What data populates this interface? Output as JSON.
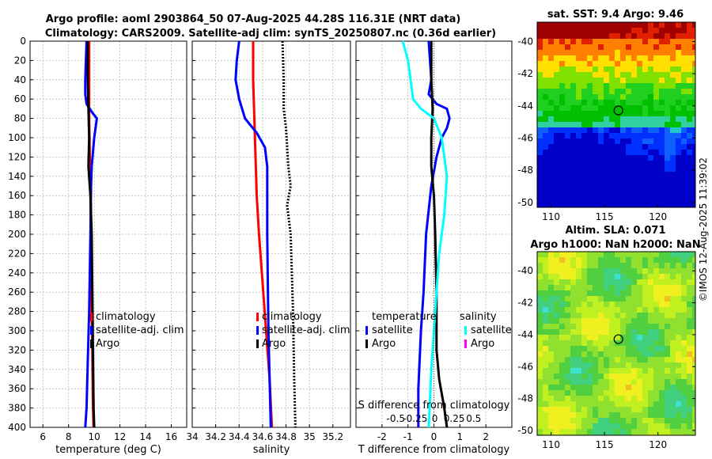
{
  "header": {
    "line1": "Argo profile: aoml 2903864_50 07-Aug-2025 44.28S 116.31E (NRT data)",
    "line2": "Climatology: CARS2009. Satellite-adj clim: synTS_20250807.nc (0.36d earlier)"
  },
  "watermark": "©IMOS 12-Aug-2025 11:39:02",
  "colors": {
    "climatology": "#ff0000",
    "satellite": "#0000ff",
    "argo": "#000000",
    "sat_sal": "#00ffff",
    "argo_sal": "#ff00ff"
  },
  "chart_data": [
    {
      "type": "line",
      "name": "temperature",
      "xlabel": "temperature (deg C)",
      "xlim": [
        5,
        17.2
      ],
      "xticks": [
        6,
        8,
        10,
        12,
        14,
        16
      ],
      "xtick_labels": [
        "6",
        "8",
        "10",
        "12",
        "14",
        "16"
      ],
      "ylim": [
        0,
        400
      ],
      "yticks": [
        0,
        20,
        40,
        60,
        80,
        100,
        120,
        140,
        160,
        180,
        200,
        220,
        240,
        260,
        280,
        300,
        320,
        340,
        360,
        380,
        400
      ],
      "ytick_labels": [
        "0",
        "20",
        "40",
        "60",
        "80",
        "100",
        "120",
        "140",
        "160",
        "180",
        "200",
        "220",
        "240",
        "260",
        "280",
        "300",
        "320",
        "340",
        "360",
        "380",
        "400"
      ],
      "legend": [
        "climatology",
        "satellite-adj. clim",
        "Argo"
      ],
      "legend_position": "bottom-right",
      "series": [
        {
          "name": "climatology",
          "color": "#ff0000",
          "dash": "",
          "points": [
            [
              9.6,
              0
            ],
            [
              9.6,
              40
            ],
            [
              9.6,
              80
            ],
            [
              9.65,
              120
            ],
            [
              9.7,
              150
            ],
            [
              9.75,
              200
            ],
            [
              9.8,
              280
            ],
            [
              9.85,
              320
            ],
            [
              9.9,
              380
            ],
            [
              9.95,
              400
            ]
          ]
        },
        {
          "name": "satellite-adj. clim",
          "color": "#0000ff",
          "dash": "",
          "points": [
            [
              9.4,
              0
            ],
            [
              9.35,
              20
            ],
            [
              9.3,
              40
            ],
            [
              9.3,
              55
            ],
            [
              9.4,
              65
            ],
            [
              9.9,
              75
            ],
            [
              10.2,
              80
            ],
            [
              10.1,
              90
            ],
            [
              10.0,
              100
            ],
            [
              9.9,
              115
            ],
            [
              9.8,
              130
            ],
            [
              9.75,
              150
            ],
            [
              9.7,
              200
            ],
            [
              9.6,
              280
            ],
            [
              9.5,
              330
            ],
            [
              9.4,
              380
            ],
            [
              9.3,
              400
            ]
          ]
        },
        {
          "name": "Argo",
          "color": "#000000",
          "dash": "",
          "points": [
            [
              9.5,
              0
            ],
            [
              9.5,
              40
            ],
            [
              9.55,
              70
            ],
            [
              9.6,
              100
            ],
            [
              9.55,
              130
            ],
            [
              9.7,
              160
            ],
            [
              9.8,
              200
            ],
            [
              9.85,
              260
            ],
            [
              9.9,
              320
            ],
            [
              9.95,
              380
            ],
            [
              10.0,
              400
            ]
          ]
        }
      ]
    },
    {
      "type": "line",
      "name": "salinity",
      "xlabel": "salinity",
      "xlim": [
        34,
        35.35
      ],
      "xticks": [
        34,
        34.2,
        34.4,
        34.6,
        34.8,
        35,
        35.2
      ],
      "xtick_labels": [
        "34",
        "34.2",
        "34.4",
        "34.6",
        "34.8",
        "35",
        "35.2"
      ],
      "ylim": [
        0,
        400
      ],
      "legend": [
        "climatology",
        "satellite-adj. clim",
        "Argo"
      ],
      "legend_position": "bottom-right",
      "series": [
        {
          "name": "climatology",
          "color": "#ff0000",
          "dash": "",
          "points": [
            [
              34.52,
              0
            ],
            [
              34.52,
              40
            ],
            [
              34.53,
              80
            ],
            [
              34.54,
              120
            ],
            [
              34.55,
              160
            ],
            [
              34.57,
              200
            ],
            [
              34.6,
              250
            ],
            [
              34.63,
              300
            ],
            [
              34.66,
              350
            ],
            [
              34.68,
              400
            ]
          ]
        },
        {
          "name": "satellite-adj. clim",
          "color": "#0000ff",
          "dash": "",
          "points": [
            [
              34.4,
              0
            ],
            [
              34.38,
              20
            ],
            [
              34.37,
              40
            ],
            [
              34.4,
              60
            ],
            [
              34.45,
              80
            ],
            [
              34.55,
              95
            ],
            [
              34.62,
              110
            ],
            [
              34.64,
              130
            ],
            [
              34.64,
              200
            ],
            [
              34.65,
              300
            ],
            [
              34.67,
              400
            ]
          ]
        },
        {
          "name": "Argo",
          "color": "#000000",
          "dash": "2,2",
          "points": [
            [
              34.77,
              0
            ],
            [
              34.78,
              40
            ],
            [
              34.78,
              70
            ],
            [
              34.8,
              90
            ],
            [
              34.82,
              130
            ],
            [
              34.84,
              150
            ],
            [
              34.81,
              170
            ],
            [
              34.84,
              200
            ],
            [
              34.86,
              280
            ],
            [
              34.87,
              350
            ],
            [
              34.88,
              400
            ]
          ]
        }
      ]
    },
    {
      "type": "line",
      "name": "differences",
      "xlabel": "T difference from climatology",
      "xlabel2": "S difference from climatology",
      "xlim": [
        -3,
        3
      ],
      "xticks": [
        -2,
        -1,
        0,
        1,
        2
      ],
      "xtick_labels": [
        "-2",
        "-1",
        "0",
        "1",
        "2"
      ],
      "xticks2_labels": [
        "-0.5",
        "-0.25",
        "0",
        "0.25",
        "0.5"
      ],
      "ylim": [
        0,
        400
      ],
      "legend_temp_header": "temperature",
      "legend_sal_header": "salinity",
      "legend_temp": [
        "satellite",
        "Argo"
      ],
      "legend_sal": [
        "satellite",
        "Argo"
      ],
      "series": [
        {
          "name": "T satellite",
          "color": "#0000ff",
          "dash": "",
          "points": [
            [
              -0.2,
              0
            ],
            [
              -0.1,
              40
            ],
            [
              -0.2,
              55
            ],
            [
              0.1,
              65
            ],
            [
              0.5,
              70
            ],
            [
              0.6,
              80
            ],
            [
              0.5,
              90
            ],
            [
              0.3,
              100
            ],
            [
              0.1,
              120
            ],
            [
              -0.1,
              150
            ],
            [
              -0.3,
              200
            ],
            [
              -0.4,
              260
            ],
            [
              -0.5,
              300
            ],
            [
              -0.6,
              360
            ],
            [
              -0.6,
              400
            ]
          ]
        },
        {
          "name": "T Argo",
          "color": "#000000",
          "dash": "",
          "points": [
            [
              -0.1,
              0
            ],
            [
              -0.1,
              40
            ],
            [
              -0.05,
              70
            ],
            [
              -0.1,
              100
            ],
            [
              -0.1,
              130
            ],
            [
              0,
              160
            ],
            [
              0.05,
              200
            ],
            [
              0.1,
              260
            ],
            [
              0.1,
              320
            ],
            [
              0.2,
              350
            ],
            [
              0.4,
              380
            ],
            [
              0.5,
              400
            ]
          ]
        },
        {
          "name": "S satellite",
          "color": "#00ffff",
          "dash": "",
          "points": [
            [
              -1.2,
              0
            ],
            [
              -1.0,
              20
            ],
            [
              -0.9,
              40
            ],
            [
              -0.8,
              60
            ],
            [
              -0.5,
              70
            ],
            [
              0,
              80
            ],
            [
              0.3,
              100
            ],
            [
              0.5,
              140
            ],
            [
              0.4,
              180
            ],
            [
              0.2,
              220
            ],
            [
              0.1,
              260
            ],
            [
              0,
              300
            ],
            [
              -0.1,
              340
            ],
            [
              -0.2,
              400
            ]
          ]
        },
        {
          "name": "S Argo",
          "color": "#ff00ff",
          "dash": "",
          "points": []
        }
      ]
    },
    {
      "type": "heatmap",
      "name": "sst-map",
      "title": "sat. SST: 9.4 Argo: 9.46",
      "xticks": [
        110,
        115,
        120
      ],
      "xtick_labels": [
        "110",
        "115",
        "120"
      ],
      "yticks": [
        -40,
        -42,
        -44,
        -46,
        -48,
        -50
      ],
      "ytick_labels": [
        "-40",
        "-42",
        "-44",
        "-46",
        "-48",
        "-50"
      ],
      "xlim": [
        108.7,
        123.5
      ],
      "ylim": [
        -50.3,
        -38.8
      ],
      "marker": [
        116.3,
        -44.28
      ]
    },
    {
      "type": "heatmap",
      "name": "sla-map",
      "title": "Altim. SLA: 0.071",
      "title2": "Argo h1000: NaN h2000: NaN",
      "xticks": [
        110,
        115,
        120
      ],
      "xtick_labels": [
        "110",
        "115",
        "120"
      ],
      "yticks": [
        -40,
        -42,
        -44,
        -46,
        -48,
        -50
      ],
      "ytick_labels": [
        "-40",
        "-42",
        "-44",
        "-46",
        "-48",
        "-50"
      ],
      "xlim": [
        108.7,
        123.5
      ],
      "ylim": [
        -50.3,
        -38.8
      ],
      "marker": [
        116.3,
        -44.28
      ]
    }
  ]
}
